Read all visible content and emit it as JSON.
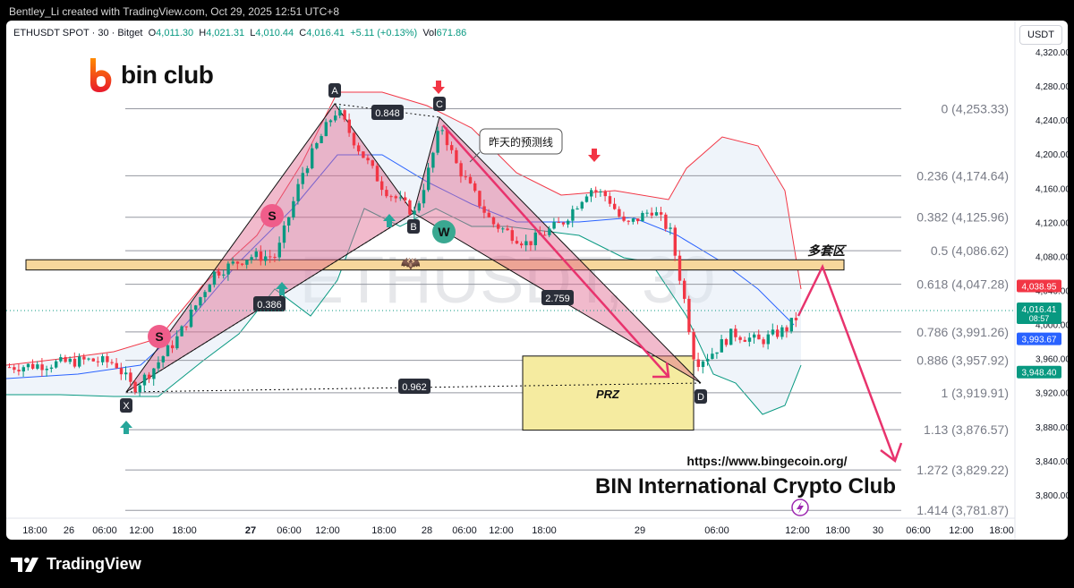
{
  "header": {
    "text": "Bentley_Li created with TradingView.com, Oct 29, 2025 12:51 UTC+8"
  },
  "footer": {
    "brand": "TradingView"
  },
  "legend": {
    "symbol": "ETHUSDT SPOT · 30 · Bitget",
    "o_label": "O",
    "o": "4,011.30",
    "h_label": "H",
    "h": "4,021.31",
    "l_label": "L",
    "l": "4,010.44",
    "c_label": "C",
    "c": "4,016.41",
    "change": "+5.11 (+0.13%)",
    "vol_label": "Vol",
    "vol": "671.86"
  },
  "currency_button": "USDT",
  "watermark": "ETHUSDT, 30",
  "brand_logo": {
    "text": "bin club"
  },
  "site_url": "https://www.bingecoin.org/",
  "club_name": "BIN International Crypto Club",
  "colors": {
    "up": "#089981",
    "down": "#f23645",
    "pattern": "#e0678f",
    "fib": "#9598a1",
    "zone": "#f7d79c",
    "prz": "#f5eba0"
  },
  "chart_data": {
    "type": "candlestick",
    "y_axis": {
      "range": [
        3780,
        4340
      ],
      "ticks": [
        3800,
        3840,
        3880,
        3920,
        3960,
        4000,
        4040,
        4080,
        4120,
        4160,
        4200,
        4240,
        4280,
        4320
      ]
    },
    "x_axis": {
      "ticks": [
        "18:00",
        "26",
        "06:00",
        "12:00",
        "18:00",
        "27",
        "06:00",
        "12:00",
        "18:00",
        "28",
        "06:00",
        "12:00",
        "18:00",
        "29",
        "06:00",
        "12:00",
        "18:00",
        "30",
        "06:00",
        "12:00",
        "18:00"
      ]
    },
    "fib_levels": [
      {
        "ratio": "0",
        "price": 4253.33,
        "label": "0 (4,253.33)"
      },
      {
        "ratio": "0.236",
        "price": 4174.64,
        "label": "0.236 (4,174.64)"
      },
      {
        "ratio": "0.382",
        "price": 4125.96,
        "label": "0.382 (4,125.96)"
      },
      {
        "ratio": "0.5",
        "price": 4086.62,
        "label": "0.5 (4,086.62)"
      },
      {
        "ratio": "0.618",
        "price": 4047.28,
        "label": "0.618 (4,047.28)"
      },
      {
        "ratio": "0.786",
        "price": 3991.26,
        "label": "0.786 (3,991.26)"
      },
      {
        "ratio": "0.886",
        "price": 3957.92,
        "label": "0.886 (3,957.92)"
      },
      {
        "ratio": "1",
        "price": 3919.91,
        "label": "1 (3,919.91)"
      },
      {
        "ratio": "1.13",
        "price": 3876.57,
        "label": "1.13 (3,876.57)"
      },
      {
        "ratio": "1.272",
        "price": 3829.22,
        "label": "1.272 (3,829.22)"
      },
      {
        "ratio": "1.414",
        "price": 3781.87,
        "label": "1.414 (3,781.87)"
      }
    ],
    "price_tags": [
      {
        "value": "4,038.95",
        "price": 4038.95,
        "color": "#f23645"
      },
      {
        "value": "4,016.41",
        "price": 4016.41,
        "color": "#089981",
        "sub": "08:57"
      },
      {
        "value": "3,993.67",
        "price": 3993.67,
        "color": "#2962ff"
      },
      {
        "value": "3,948.40",
        "price": 3948.4,
        "color": "#089981"
      }
    ],
    "pattern_points": [
      {
        "label": "X",
        "price": 3918
      },
      {
        "label": "A",
        "price": 4252
      },
      {
        "label": "B",
        "price": 4127
      },
      {
        "label": "C",
        "price": 4240
      },
      {
        "label": "D",
        "price": 3938
      }
    ],
    "ratios": [
      "0.848",
      "0.386",
      "2.759",
      "0.962"
    ],
    "annotations": {
      "yesterday_line": "昨天的预测线",
      "long_zone": "多套区",
      "prz": "PRZ",
      "s1": "S",
      "s2": "S",
      "w": "W"
    },
    "zones": {
      "long_zone": [
        4064,
        4076
      ],
      "prz": [
        3876,
        3963
      ]
    }
  }
}
